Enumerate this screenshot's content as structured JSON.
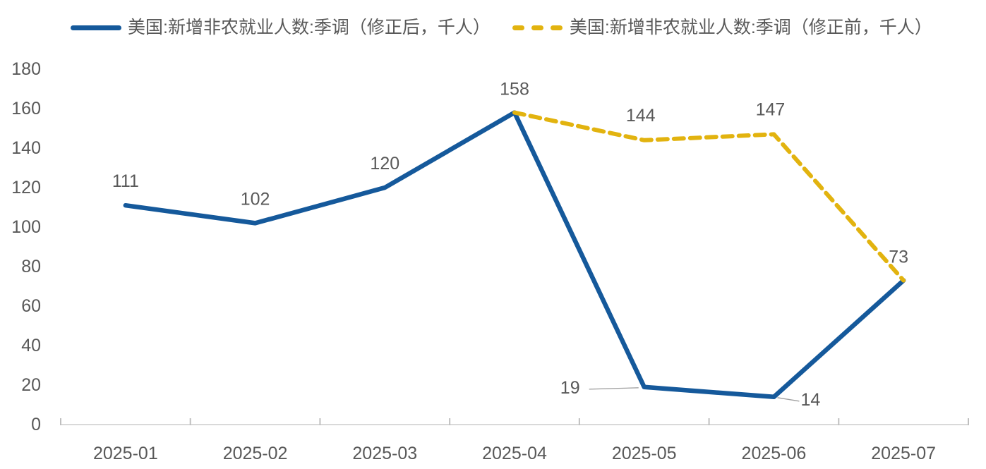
{
  "legend": [
    {
      "label": "美国:新增非农就业人数:季调（修正后，千人）",
      "color": "#15599B",
      "style": "solid"
    },
    {
      "label": "美国:新增非农就业人数:季调（修正前，千人）",
      "color": "#E2B30F",
      "style": "dashed"
    }
  ],
  "colors": {
    "revised_series": "#15599B",
    "original_series": "#E2B30F",
    "axis_line": "#D9D9D9",
    "tick_mark": "#BFBFBF",
    "label_text": "#595959",
    "leader_line": "#A0A0A0"
  },
  "chart_data": {
    "type": "line",
    "categories": [
      "2025-01",
      "2025-02",
      "2025-03",
      "2025-04",
      "2025-05",
      "2025-06",
      "2025-07"
    ],
    "yticks": [
      0,
      20,
      40,
      60,
      80,
      100,
      120,
      140,
      160,
      180
    ],
    "ylim": [
      0,
      180
    ],
    "grid": false,
    "legend_position": "top",
    "series": [
      {
        "name": "美国:新增非农就业人数:季调（修正后，千人）",
        "color": "#15599B",
        "line_style": "solid",
        "x": [
          0,
          1,
          2,
          3,
          4,
          5,
          6
        ],
        "values": [
          111,
          102,
          120,
          158,
          19,
          14,
          73
        ],
        "labels": [
          "111",
          "102",
          "120",
          "158",
          "19",
          "14",
          "73"
        ]
      },
      {
        "name": "美国:新增非农就业人数:季调（修正前，千人）",
        "color": "#E2B30F",
        "line_style": "dashed",
        "x": [
          3,
          4,
          5,
          6
        ],
        "values": [
          158,
          144,
          147,
          73
        ],
        "labels": [
          null,
          "144",
          "147",
          null
        ]
      }
    ]
  }
}
